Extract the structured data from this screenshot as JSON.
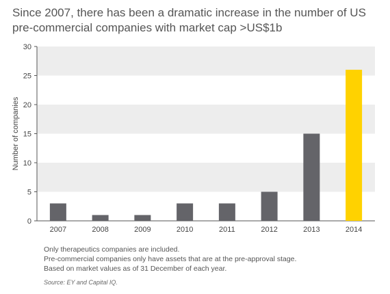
{
  "title": {
    "line1": "Since 2007, there has been a dramatic increase in the number of US",
    "line2": "pre-commercial companies with market cap >US$1b"
  },
  "chart_data": {
    "type": "bar",
    "categories": [
      "2007",
      "2008",
      "2009",
      "2010",
      "2011",
      "2012",
      "2013",
      "2014"
    ],
    "values": [
      3,
      1,
      1,
      3,
      3,
      5,
      15,
      26
    ],
    "ylabel": "Number of companies",
    "xlabel": "",
    "ylim": [
      0,
      30
    ],
    "yticks": [
      0,
      5,
      10,
      15,
      20,
      25,
      30
    ],
    "grid": "alternating horizontal bands",
    "colors": {
      "bar": "#646469",
      "highlight_bar": "#FFD200",
      "band": "#EDEDED",
      "axis": "#555555"
    },
    "highlight_category": "2014"
  },
  "notes": {
    "line1": "Only therapeutics companies are included.",
    "line2": "Pre-commercial companies only have assets that are at the pre-approval stage.",
    "line3": "Based on market values as of 31 December of each year."
  },
  "source": "Source: EY and Capital IQ."
}
